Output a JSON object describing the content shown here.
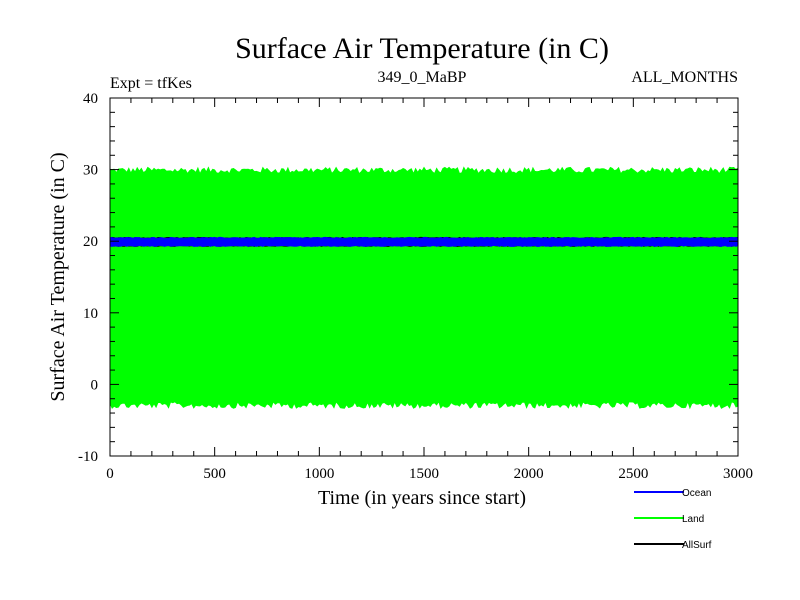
{
  "chart_data": {
    "type": "line",
    "title": "Surface Air Temperature (in C)",
    "subtitle_left": "Expt = tfKes",
    "subtitle_center": "349_0_MaBP",
    "subtitle_right": "ALL_MONTHS",
    "xlabel": "Time (in years since start)",
    "ylabel": "Surface Air Temperature (in C)",
    "xlim": [
      0,
      3000
    ],
    "ylim": [
      -10,
      40
    ],
    "x_ticks": [
      0,
      500,
      1000,
      1500,
      2000,
      2500,
      3000
    ],
    "y_ticks": [
      -10,
      0,
      10,
      20,
      30,
      40
    ],
    "grid": false,
    "legend_position": "bottom-right",
    "series": [
      {
        "name": "Ocean",
        "color": "#0000ff",
        "mean": 19.9,
        "min": 19.3,
        "max": 20.5
      },
      {
        "name": "Land",
        "color": "#00ff00",
        "mean": 13.5,
        "min": -3.0,
        "max": 30.0
      },
      {
        "name": "AllSurf",
        "color": "#000000",
        "mean": 19.9,
        "min": 19.3,
        "max": 20.5
      }
    ]
  }
}
